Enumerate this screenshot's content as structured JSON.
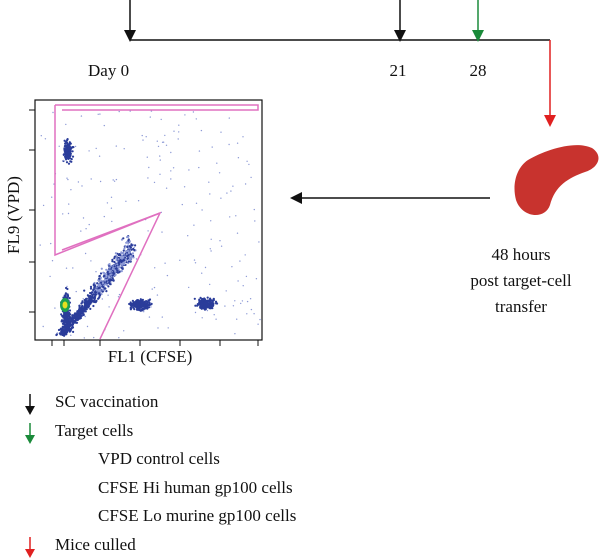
{
  "timeline": {
    "labels": [
      "Day 0",
      "21",
      "28"
    ]
  },
  "transfer_note": [
    "48 hours",
    "post target-cell",
    "transfer"
  ],
  "plot": {
    "y_label": "FL9 (VPD)",
    "x_label": "FL1 (CFSE)"
  },
  "legend": {
    "vaccination": "SC vaccination",
    "target": "Target cells",
    "target_items": [
      "VPD control cells",
      "CFSE Hi human gp100 cells",
      "CFSE Lo murine gp100 cells"
    ],
    "culled": "Mice culled"
  }
}
